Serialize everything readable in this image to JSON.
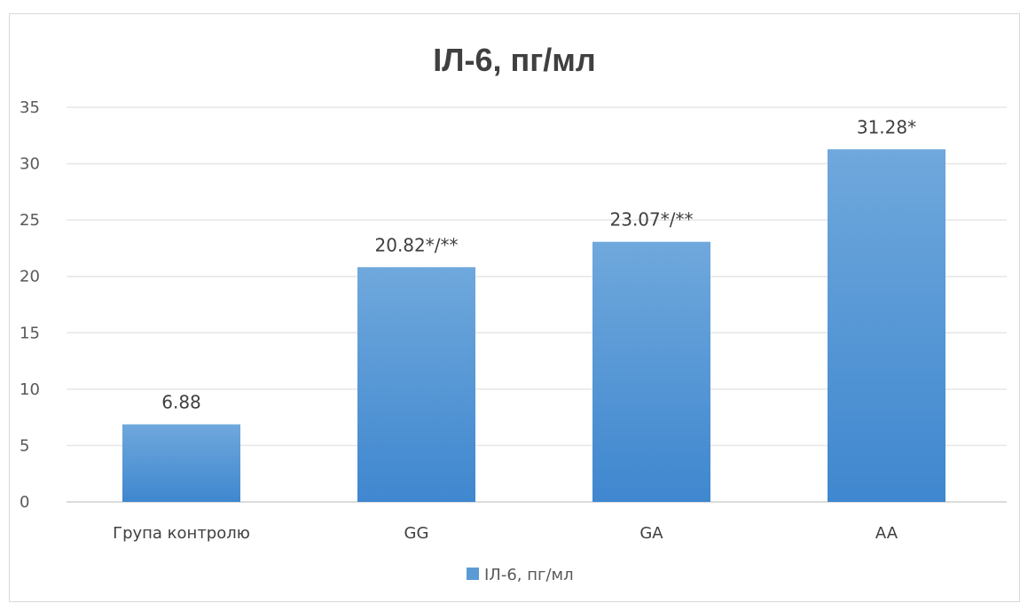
{
  "chart_data": {
    "type": "bar",
    "title": "ІЛ-6, пг/мл",
    "categories": [
      "Група контролю",
      "GG",
      "GA",
      "AA"
    ],
    "series": [
      {
        "name": "ІЛ-6, пг/мл",
        "values": [
          6.88,
          20.82,
          23.07,
          31.28
        ],
        "data_labels": [
          "6.88",
          "20.82*/**",
          "23.07*/**",
          "31.28*"
        ],
        "color": "#5b9bd5"
      }
    ],
    "ylim": [
      0,
      35
    ],
    "yticks": [
      0,
      5,
      10,
      15,
      20,
      25,
      30,
      35
    ],
    "grid": true,
    "legend": "bottom-center"
  },
  "colors": {
    "bar_top": "#6fa8dc",
    "bar_bottom": "#3f87cf"
  }
}
